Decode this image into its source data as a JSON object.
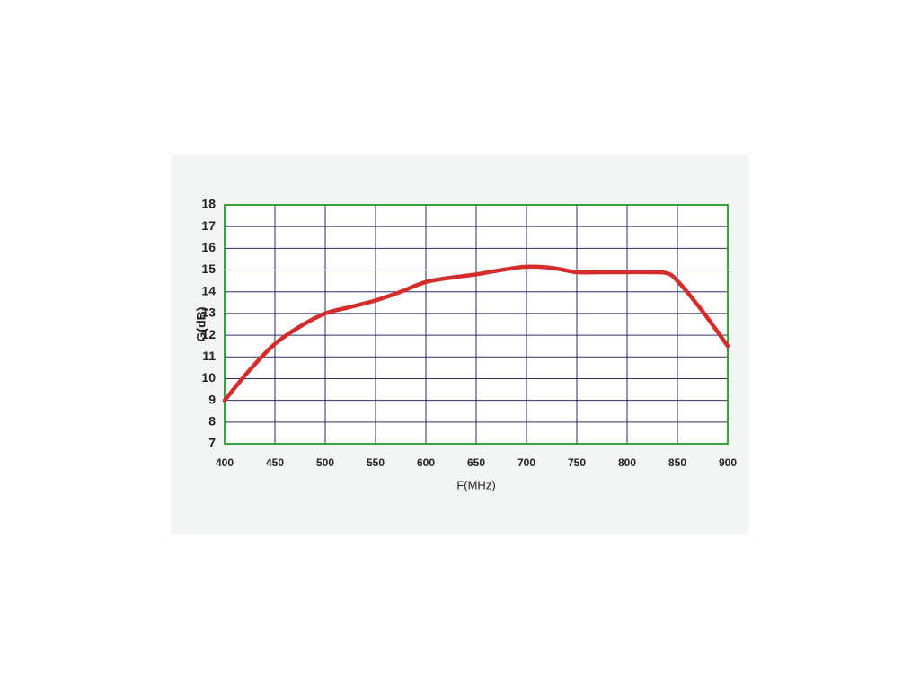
{
  "chart_data": {
    "type": "line",
    "x_label": "F(MHz)",
    "y_label": "G(dB)",
    "x": [
      400,
      425,
      450,
      475,
      500,
      525,
      550,
      575,
      600,
      625,
      650,
      675,
      700,
      725,
      750,
      775,
      800,
      825,
      840,
      850,
      875,
      900
    ],
    "series": [
      {
        "name": "G",
        "color": "#d42b2b",
        "values": [
          9,
          10.4,
          11.6,
          12.4,
          13.0,
          13.3,
          13.6,
          14.0,
          14.45,
          14.65,
          14.8,
          15.0,
          15.15,
          15.1,
          14.9,
          14.9,
          14.9,
          14.9,
          14.85,
          14.5,
          13.1,
          11.5
        ]
      }
    ],
    "xlim": [
      400,
      900
    ],
    "xticks": [
      400,
      450,
      500,
      550,
      600,
      650,
      700,
      750,
      800,
      850,
      900
    ],
    "ylim": [
      7,
      18
    ],
    "yticks": [
      7,
      8,
      9,
      10,
      11,
      12,
      13,
      14,
      15,
      16,
      17,
      18
    ],
    "grid": true,
    "grid_color": "#2b2d6e",
    "frame_color": "#3aa23a"
  }
}
